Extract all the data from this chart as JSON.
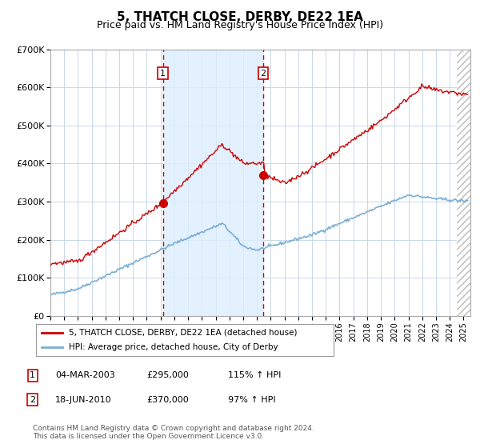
{
  "title": "5, THATCH CLOSE, DERBY, DE22 1EA",
  "subtitle": "Price paid vs. HM Land Registry's House Price Index (HPI)",
  "title_fontsize": 11,
  "subtitle_fontsize": 9,
  "ylim": [
    0,
    700000
  ],
  "ytick_labels": [
    "£0",
    "£100K",
    "£200K",
    "£300K",
    "£400K",
    "£500K",
    "£600K",
    "£700K"
  ],
  "ytick_values": [
    0,
    100000,
    200000,
    300000,
    400000,
    500000,
    600000,
    700000
  ],
  "background_color": "#ffffff",
  "plot_bg_color": "#ffffff",
  "grid_color": "#c8d8e8",
  "hpi_line_color": "#7bafd4",
  "price_line_color": "#cc0000",
  "shade_color": "#ddeeff",
  "dashed_line_color": "#cc0000",
  "marker_color": "#cc0000",
  "purchase1_date": 2003.17,
  "purchase1_price": 295000,
  "purchase2_date": 2010.46,
  "purchase2_price": 370000,
  "shade_x1": 2003.17,
  "shade_x2": 2010.46,
  "legend_entries": [
    "5, THATCH CLOSE, DERBY, DE22 1EA (detached house)",
    "HPI: Average price, detached house, City of Derby"
  ],
  "legend_colors": [
    "#cc0000",
    "#7bafd4"
  ],
  "footnote": "Contains HM Land Registry data © Crown copyright and database right 2024.\nThis data is licensed under the Open Government Licence v3.0.",
  "table_rows": [
    [
      "1",
      "04-MAR-2003",
      "£295,000",
      "115% ↑ HPI"
    ],
    [
      "2",
      "18-JUN-2010",
      "£370,000",
      "97% ↑ HPI"
    ]
  ],
  "xmin": 1995.0,
  "xmax": 2025.5,
  "hatch_start": 2024.5
}
